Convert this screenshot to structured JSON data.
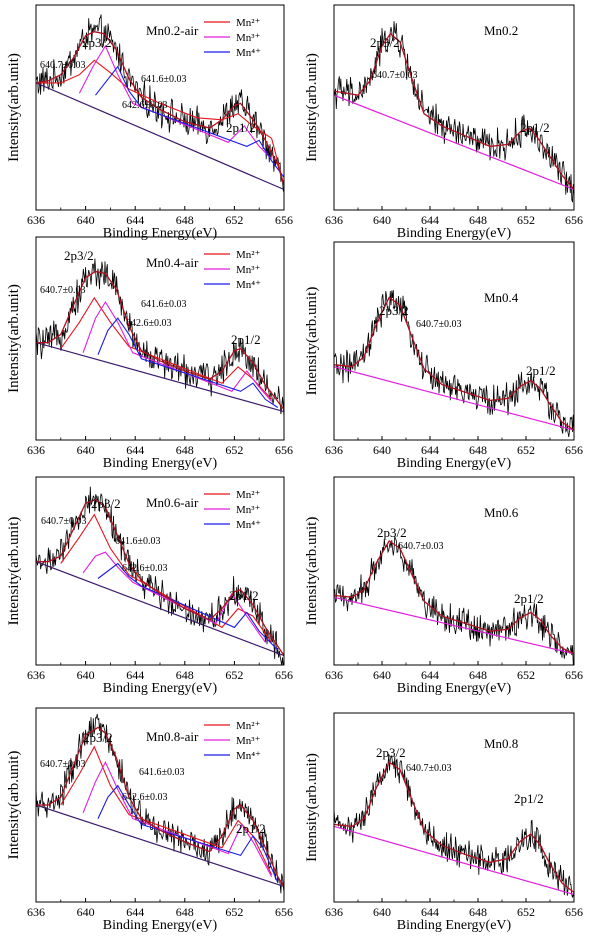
{
  "chart_data": [
    {
      "type": "line",
      "title": "Mn0.2-air",
      "xlabel": "Binding Energy(eV)",
      "ylabel": "Intensity(arb.unit)",
      "xlim": [
        636,
        656
      ],
      "xticks": [
        "636",
        "640",
        "644",
        "648",
        "652",
        "656"
      ],
      "ylim": [
        0,
        1
      ],
      "legend": {
        "position": "top-right",
        "entries": [
          {
            "label": "Mn²⁺",
            "color": "#e8141c"
          },
          {
            "label": "Mn³⁺",
            "color": "#e31ee0"
          },
          {
            "label": "Mn⁴⁺",
            "color": "#1a1ae6"
          }
        ]
      },
      "peaks": [
        {
          "label": "2p3/2",
          "x": 640.6,
          "y": 0.85
        },
        {
          "label": "2p1/2",
          "x": 652.3,
          "y": 0.52
        }
      ],
      "annotations": [
        "640.7±0.03",
        "641.6±0.03",
        "642.6±0.03"
      ],
      "background": {
        "x": [
          636,
          656
        ],
        "y": [
          0.62,
          0.1
        ]
      },
      "components": [
        {
          "name": "Mn²⁺",
          "color": "#e8141c",
          "x": [
            636,
            638,
            639.5,
            640.7,
            642,
            643.5,
            646,
            649,
            651,
            652.3,
            653.5,
            655,
            656
          ],
          "y": [
            0.62,
            0.62,
            0.66,
            0.73,
            0.67,
            0.59,
            0.52,
            0.45,
            0.44,
            0.47,
            0.41,
            0.35,
            0.12
          ]
        },
        {
          "name": "Mn³⁺",
          "color": "#e31ee0",
          "x": [
            639.5,
            640.6,
            641.6,
            642.6,
            643.8,
            651.5,
            652.8,
            654,
            655
          ],
          "y": [
            0.57,
            0.7,
            0.8,
            0.66,
            0.52,
            0.33,
            0.41,
            0.31,
            0.25
          ]
        },
        {
          "name": "Mn⁴⁺",
          "color": "#1a1ae6",
          "x": [
            640.8,
            641.7,
            642.6,
            643.5,
            644.5,
            653,
            654,
            655,
            656
          ],
          "y": [
            0.56,
            0.63,
            0.7,
            0.58,
            0.5,
            0.31,
            0.34,
            0.24,
            0.16
          ]
        }
      ],
      "envelope": {
        "x": [
          636,
          637,
          638,
          639,
          640,
          640.7,
          641.5,
          642.5,
          643.5,
          644.5,
          646,
          648,
          650,
          651,
          652,
          652.5,
          653.5,
          654.5,
          655.5,
          656
        ],
        "y": [
          0.62,
          0.63,
          0.66,
          0.74,
          0.85,
          0.87,
          0.86,
          0.78,
          0.64,
          0.55,
          0.49,
          0.43,
          0.4,
          0.44,
          0.51,
          0.52,
          0.44,
          0.34,
          0.22,
          0.12
        ]
      }
    },
    {
      "type": "line",
      "title": "Mn0.2",
      "xlabel": "Binding Energy(eV)",
      "ylabel": "Intensity(arb.unit)",
      "xlim": [
        636,
        656
      ],
      "xticks": [
        "636",
        "640",
        "644",
        "648",
        "652",
        "656"
      ],
      "ylim": [
        0,
        1
      ],
      "peaks": [
        {
          "label": "2p3/2",
          "x": 640.7,
          "y": 0.86
        },
        {
          "label": "2p1/2",
          "x": 652.3,
          "y": 0.4
        }
      ],
      "annotations": [
        "640.7±0.03"
      ],
      "background": {
        "x": [
          636,
          656
        ],
        "y": [
          0.56,
          0.1
        ]
      },
      "envelope": {
        "x": [
          636,
          638,
          639,
          640,
          640.7,
          641.5,
          642.5,
          643.5,
          645,
          647,
          649,
          650.5,
          651.5,
          652.3,
          653,
          654,
          655,
          656
        ],
        "y": [
          0.58,
          0.56,
          0.63,
          0.8,
          0.86,
          0.82,
          0.64,
          0.47,
          0.41,
          0.36,
          0.31,
          0.32,
          0.38,
          0.4,
          0.35,
          0.26,
          0.17,
          0.1
        ]
      }
    },
    {
      "type": "line",
      "title": "Mn0.4-air",
      "xlabel": "Binding Energy(eV)",
      "ylabel": "Intensity(arb.unit)",
      "xlim": [
        636,
        656
      ],
      "xticks": [
        "636",
        "640",
        "644",
        "648",
        "652",
        "656"
      ],
      "ylim": [
        0,
        1
      ],
      "legend": {
        "position": "top-right",
        "entries": [
          {
            "label": "Mn²⁺",
            "color": "#e8141c"
          },
          {
            "label": "Mn³⁺",
            "color": "#e31ee0"
          },
          {
            "label": "Mn⁴⁺",
            "color": "#1a1ae6"
          }
        ]
      },
      "peaks": [
        {
          "label": "2p3/2",
          "x": 640.8,
          "y": 0.83
        },
        {
          "label": "2p1/2",
          "x": 652.4,
          "y": 0.45
        }
      ],
      "annotations": [
        "640.7±0.03",
        "641.6±0.03",
        "642.6±0.03"
      ],
      "background": {
        "x": [
          636,
          656
        ],
        "y": [
          0.48,
          0.14
        ]
      },
      "components": [
        {
          "name": "Mn²⁺",
          "color": "#e8141c",
          "x": [
            638,
            639.5,
            640.7,
            642,
            643.5,
            651,
            652.3,
            653.5,
            655
          ],
          "y": [
            0.45,
            0.58,
            0.7,
            0.58,
            0.46,
            0.28,
            0.36,
            0.3,
            0.2
          ]
        },
        {
          "name": "Mn³⁺",
          "color": "#e31ee0",
          "x": [
            639.8,
            640.8,
            641.6,
            642.6,
            643.8,
            651.8,
            653,
            654,
            655
          ],
          "y": [
            0.43,
            0.6,
            0.68,
            0.58,
            0.43,
            0.24,
            0.34,
            0.26,
            0.19
          ]
        },
        {
          "name": "Mn⁴⁺",
          "color": "#1a1ae6",
          "x": [
            641,
            641.8,
            642.6,
            643.5,
            644.5,
            652.5,
            653.5,
            654.5,
            655.5
          ],
          "y": [
            0.42,
            0.54,
            0.6,
            0.52,
            0.4,
            0.24,
            0.28,
            0.2,
            0.16
          ]
        }
      ],
      "envelope": {
        "x": [
          636,
          637,
          638,
          639,
          640,
          640.8,
          641.6,
          642.5,
          643.5,
          644.5,
          646,
          648,
          650,
          651,
          652,
          652.5,
          653.5,
          654.5,
          655.5,
          656
        ],
        "y": [
          0.48,
          0.48,
          0.52,
          0.66,
          0.8,
          0.83,
          0.82,
          0.74,
          0.56,
          0.44,
          0.39,
          0.34,
          0.3,
          0.34,
          0.44,
          0.45,
          0.38,
          0.27,
          0.19,
          0.15
        ]
      }
    },
    {
      "type": "line",
      "title": "Mn0.4",
      "xlabel": "Binding Energy(eV)",
      "ylabel": "Intensity(arb.unit)",
      "xlim": [
        636,
        656
      ],
      "xticks": [
        "636",
        "640",
        "644",
        "648",
        "652",
        "656"
      ],
      "ylim": [
        0,
        1
      ],
      "peaks": [
        {
          "label": "2p3/2",
          "x": 640.6,
          "y": 0.72
        },
        {
          "label": "2p1/2",
          "x": 652.4,
          "y": 0.3
        }
      ],
      "annotations": [
        "640.7±0.03"
      ],
      "background": {
        "x": [
          636,
          656
        ],
        "y": [
          0.37,
          0.05
        ]
      },
      "envelope": {
        "x": [
          636,
          637.5,
          638.5,
          639.5,
          640.6,
          641.5,
          642.5,
          643.5,
          645,
          647,
          649,
          650.5,
          651.5,
          652.4,
          653.2,
          654,
          655,
          656
        ],
        "y": [
          0.38,
          0.37,
          0.42,
          0.58,
          0.72,
          0.68,
          0.52,
          0.36,
          0.28,
          0.24,
          0.2,
          0.21,
          0.27,
          0.3,
          0.26,
          0.18,
          0.09,
          0.05
        ]
      }
    },
    {
      "type": "line",
      "title": "Mn0.6-air",
      "xlabel": "Binding Energy(eV)",
      "ylabel": "Intensity(arb.unit)",
      "xlim": [
        636,
        656
      ],
      "xticks": [
        "636",
        "640",
        "644",
        "648",
        "652",
        "656"
      ],
      "ylim": [
        0,
        1
      ],
      "legend": {
        "position": "top-right",
        "entries": [
          {
            "label": "Mn²⁺",
            "color": "#e8141c"
          },
          {
            "label": "Mn³⁺",
            "color": "#e31ee0"
          },
          {
            "label": "Mn⁴⁺",
            "color": "#1a1ae6"
          }
        ]
      },
      "peaks": [
        {
          "label": "2p3/2",
          "x": 640.8,
          "y": 0.88
        },
        {
          "label": "2p1/2",
          "x": 652.3,
          "y": 0.4
        }
      ],
      "annotations": [
        "640.7±0.03",
        "641.6±0.03",
        "642.6±0.03"
      ],
      "background": {
        "x": [
          636,
          656
        ],
        "y": [
          0.55,
          0.05
        ]
      },
      "components": [
        {
          "name": "Mn²⁺",
          "color": "#e8141c",
          "x": [
            638,
            639.5,
            640.7,
            642,
            643.5,
            651,
            652.3,
            653.5,
            655
          ],
          "y": [
            0.54,
            0.68,
            0.8,
            0.62,
            0.48,
            0.2,
            0.3,
            0.26,
            0.12
          ]
        },
        {
          "name": "Mn³⁺",
          "color": "#e31ee0",
          "x": [
            639.8,
            640.8,
            641.6,
            642.6,
            643.8,
            650.5,
            651.8,
            653,
            654.5
          ],
          "y": [
            0.49,
            0.58,
            0.6,
            0.52,
            0.44,
            0.22,
            0.38,
            0.26,
            0.12
          ]
        },
        {
          "name": "Mn⁴⁺",
          "color": "#1a1ae6",
          "x": [
            641,
            641.8,
            642.6,
            643.5,
            644.5,
            652,
            653,
            654,
            655.5
          ],
          "y": [
            0.46,
            0.5,
            0.54,
            0.47,
            0.42,
            0.2,
            0.28,
            0.18,
            0.08
          ]
        }
      ],
      "envelope": {
        "x": [
          636,
          637,
          638,
          639,
          640,
          640.8,
          641.6,
          642.5,
          643.5,
          644.5,
          646,
          648,
          650,
          651,
          652,
          652.5,
          653.5,
          654.5,
          655.5,
          656
        ],
        "y": [
          0.55,
          0.55,
          0.58,
          0.72,
          0.86,
          0.88,
          0.84,
          0.7,
          0.54,
          0.45,
          0.38,
          0.3,
          0.24,
          0.3,
          0.39,
          0.4,
          0.32,
          0.2,
          0.1,
          0.05
        ]
      }
    },
    {
      "type": "line",
      "title": "Mn0.6",
      "xlabel": "Binding Energy(eV)",
      "ylabel": "Intensity(arb.unit)",
      "xlim": [
        636,
        656
      ],
      "xticks": [
        "636",
        "640",
        "644",
        "648",
        "652",
        "656"
      ],
      "ylim": [
        0,
        1
      ],
      "peaks": [
        {
          "label": "2p3/2",
          "x": 640.6,
          "y": 0.66
        },
        {
          "label": "2p1/2",
          "x": 652.4,
          "y": 0.28
        }
      ],
      "annotations": [
        "640.7±0.03"
      ],
      "background": {
        "x": [
          636,
          656
        ],
        "y": [
          0.36,
          0.06
        ]
      },
      "envelope": {
        "x": [
          636,
          637.5,
          638.5,
          639.5,
          640.6,
          641.5,
          642.5,
          643.5,
          645,
          647,
          649,
          650.5,
          651.5,
          652.4,
          653.2,
          654,
          655,
          656
        ],
        "y": [
          0.37,
          0.36,
          0.4,
          0.54,
          0.66,
          0.62,
          0.48,
          0.34,
          0.26,
          0.22,
          0.18,
          0.19,
          0.25,
          0.28,
          0.24,
          0.16,
          0.09,
          0.06
        ]
      }
    },
    {
      "type": "line",
      "title": "Mn0.8-air",
      "xlabel": "Binding Energy(eV)",
      "ylabel": "Intensity(arb.unit)",
      "xlim": [
        636,
        656
      ],
      "xticks": [
        "636",
        "640",
        "644",
        "648",
        "652",
        "656"
      ],
      "ylim": [
        0,
        1
      ],
      "legend": {
        "position": "top-right",
        "entries": [
          {
            "label": "Mn²⁺",
            "color": "#e8141c"
          },
          {
            "label": "Mn³⁺",
            "color": "#e31ee0"
          },
          {
            "label": "Mn⁴⁺",
            "color": "#1a1ae6"
          }
        ]
      },
      "peaks": [
        {
          "label": "2p3/2",
          "x": 641,
          "y": 0.9
        },
        {
          "label": "2p1/2",
          "x": 652.5,
          "y": 0.5
        }
      ],
      "annotations": [
        "640.7±0.03",
        "641.6±0.03",
        "642.6±0.03"
      ],
      "background": {
        "x": [
          636,
          656
        ],
        "y": [
          0.5,
          0.08
        ]
      },
      "components": [
        {
          "name": "Mn²⁺",
          "color": "#e8141c",
          "x": [
            638,
            639.5,
            640.7,
            642,
            643.5,
            651,
            652.3,
            653.5,
            655
          ],
          "y": [
            0.5,
            0.66,
            0.8,
            0.6,
            0.45,
            0.28,
            0.42,
            0.34,
            0.14
          ]
        },
        {
          "name": "Mn³⁺",
          "color": "#e31ee0",
          "x": [
            639.8,
            640.8,
            641.6,
            642.6,
            643.8,
            651.5,
            652.6,
            653.6,
            655
          ],
          "y": [
            0.46,
            0.62,
            0.72,
            0.58,
            0.43,
            0.25,
            0.4,
            0.3,
            0.13
          ]
        },
        {
          "name": "Mn⁴⁺",
          "color": "#1a1ae6",
          "x": [
            641,
            641.8,
            642.6,
            643.5,
            644.5,
            652.5,
            653.5,
            654.3,
            655.5
          ],
          "y": [
            0.43,
            0.54,
            0.6,
            0.5,
            0.4,
            0.24,
            0.34,
            0.28,
            0.1
          ]
        }
      ],
      "envelope": {
        "x": [
          636,
          637,
          638,
          639,
          640,
          641,
          641.6,
          642.5,
          643.5,
          644.5,
          646,
          648,
          650,
          651,
          652,
          652.5,
          653.5,
          654.5,
          655.5,
          656
        ],
        "y": [
          0.5,
          0.5,
          0.54,
          0.7,
          0.86,
          0.9,
          0.87,
          0.74,
          0.54,
          0.43,
          0.37,
          0.31,
          0.26,
          0.34,
          0.48,
          0.5,
          0.42,
          0.28,
          0.13,
          0.08
        ]
      }
    },
    {
      "type": "line",
      "title": "Mn0.8",
      "xlabel": "Binding Energy(eV)",
      "ylabel": "Intensity(arb.unit)",
      "xlim": [
        636,
        656
      ],
      "xticks": [
        "636",
        "640",
        "644",
        "648",
        "652",
        "656"
      ],
      "ylim": [
        0,
        1
      ],
      "peaks": [
        {
          "label": "2p3/2",
          "x": 640.6,
          "y": 0.74
        },
        {
          "label": "2p1/2",
          "x": 652.4,
          "y": 0.36
        }
      ],
      "annotations": [
        "640.7±0.03"
      ],
      "background": {
        "x": [
          636,
          656
        ],
        "y": [
          0.4,
          0.04
        ]
      },
      "envelope": {
        "x": [
          636,
          637.5,
          638.5,
          639.5,
          640.6,
          641.5,
          642.5,
          643.5,
          645,
          647,
          649,
          650.5,
          651.5,
          652.4,
          653.2,
          654,
          655,
          656
        ],
        "y": [
          0.41,
          0.4,
          0.44,
          0.6,
          0.74,
          0.7,
          0.54,
          0.38,
          0.3,
          0.25,
          0.21,
          0.23,
          0.32,
          0.36,
          0.3,
          0.2,
          0.1,
          0.05
        ]
      }
    }
  ]
}
